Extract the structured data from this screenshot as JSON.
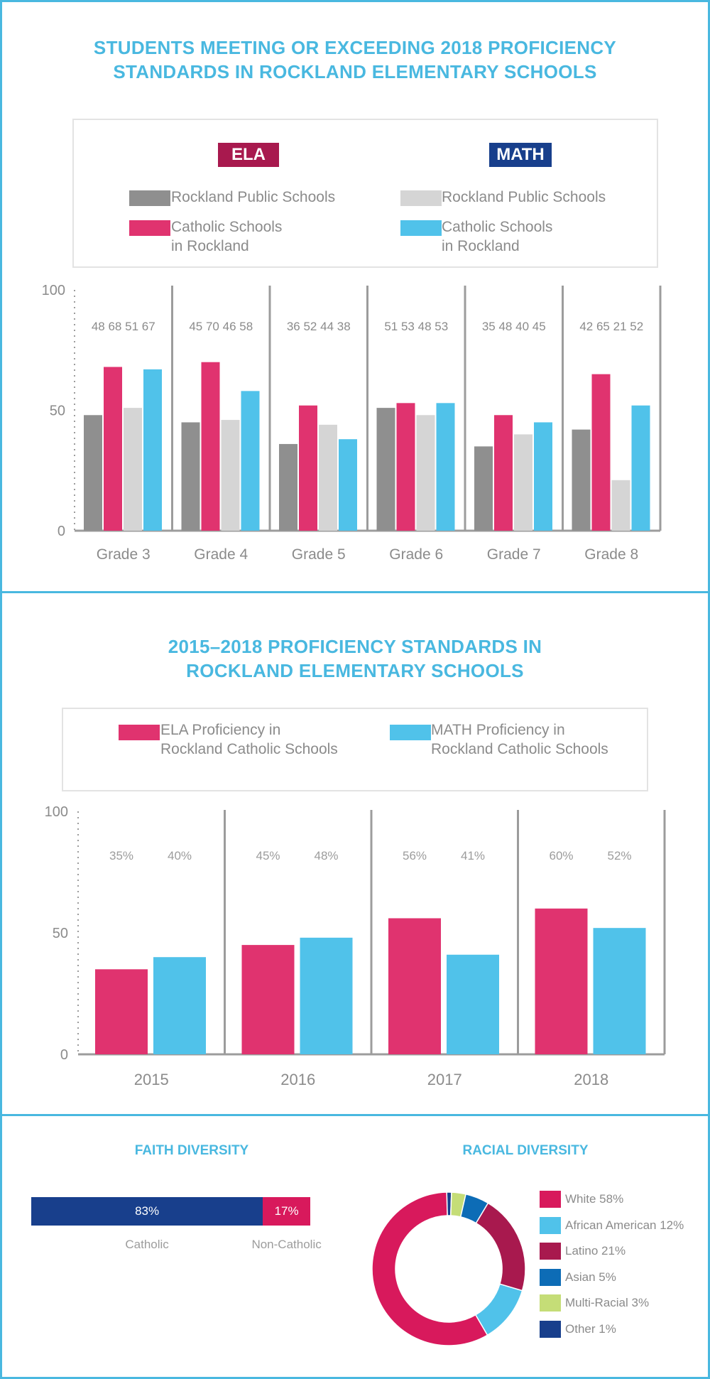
{
  "colors": {
    "frame": "#49b8e0",
    "ela_public": "#8f8f8f",
    "ela_catholic": "#e0336f",
    "math_public": "#d5d5d5",
    "math_catholic": "#50c2ea",
    "ela_tag": "#a8194e",
    "math_tag": "#183f8c",
    "catholic_bar": "#183f8c",
    "noncatholic_bar": "#d8195c"
  },
  "section1": {
    "title_line1": "STUDENTS MEETING OR EXCEEDING 2018 PROFICIENCY",
    "title_line2": "STANDARDS IN ROCKLAND ELEMENTARY SCHOOLS",
    "legend": {
      "ela_tag": "ELA",
      "math_tag": "MATH",
      "ela_public": "Rockland Public Schools",
      "ela_catholic": "Catholic Schools\nin Rockland",
      "math_public": "Rockland Public Schools",
      "math_catholic": "Catholic Schools\nin Rockland"
    }
  },
  "section2": {
    "title_line1": "2015–2018 PROFICIENCY STANDARDS IN",
    "title_line2": "ROCKLAND ELEMENTARY SCHOOLS",
    "legend": {
      "ela": "ELA Proficiency in\nRockland Catholic Schools",
      "math": "MATH Proficiency in\nRockland Catholic Schools"
    }
  },
  "section3": {
    "faith_title": "FAITH DIVERSITY",
    "racial_title": "RACIAL DIVERSITY"
  },
  "chart_data": [
    {
      "type": "bar",
      "categories": [
        "Grade 3",
        "Grade 4",
        "Grade 5",
        "Grade 6",
        "Grade 7",
        "Grade 8"
      ],
      "series": [
        {
          "name": "Rockland Public Schools",
          "values": [
            48,
            45,
            36,
            51,
            35,
            42
          ],
          "color": "#8f8f8f"
        },
        {
          "name": "Catholic Schools in Rockland",
          "values": [
            68,
            70,
            52,
            53,
            48,
            65
          ],
          "color": "#e0336f"
        },
        {
          "name": "Rockland Public Schools",
          "values": [
            51,
            46,
            44,
            48,
            40,
            21
          ],
          "color": "#d5d5d5"
        },
        {
          "name": "Catholic Schools in Rockland",
          "values": [
            67,
            58,
            38,
            53,
            45,
            52
          ],
          "color": "#50c2ea"
        }
      ],
      "value_labels": [
        "48 68 51 67",
        "45 70 46 58",
        "36 52 44 38",
        "51 53 48 53",
        "35 48 40 45",
        "42 65 21 52"
      ],
      "yticks": [
        "0",
        "50",
        "100"
      ],
      "ylim": [
        0,
        100
      ],
      "legend": "top"
    },
    {
      "type": "bar",
      "categories": [
        "2015",
        "2016",
        "2017",
        "2018"
      ],
      "series": [
        {
          "name": "ELA Proficiency in Rockland Catholic Schools",
          "values": [
            35,
            45,
            56,
            60
          ],
          "color": "#e0336f"
        },
        {
          "name": "MATH Proficiency in Rockland Catholic Schools",
          "values": [
            40,
            48,
            41,
            52
          ],
          "color": "#50c2ea"
        }
      ],
      "value_labels": [
        [
          "35%",
          "40%"
        ],
        [
          "45%",
          "48%"
        ],
        [
          "56%",
          "41%"
        ],
        [
          "60%",
          "52%"
        ]
      ],
      "yticks": [
        "0",
        "50",
        "100"
      ],
      "ylim": [
        0,
        100
      ],
      "legend": "top"
    },
    {
      "type": "bar",
      "orientation": "horizontal-stacked",
      "categories": [
        "Catholic",
        "Non-Catholic"
      ],
      "values": [
        83,
        17
      ],
      "value_labels": [
        "83%",
        "17%"
      ],
      "colors": [
        "#183f8c",
        "#d8195c"
      ]
    },
    {
      "type": "pie",
      "style": "donut",
      "labels": [
        "White 58%",
        "African American 12%",
        "Latino 21%",
        "Asian 5%",
        "Multi-Racial 3%",
        "Other 1%"
      ],
      "values": [
        58,
        12,
        21,
        5,
        3,
        1
      ],
      "colors": [
        "#d8195c",
        "#50c2ea",
        "#a8194e",
        "#0d6cb6",
        "#c5dd77",
        "#183f8c"
      ],
      "legend": "right"
    }
  ]
}
